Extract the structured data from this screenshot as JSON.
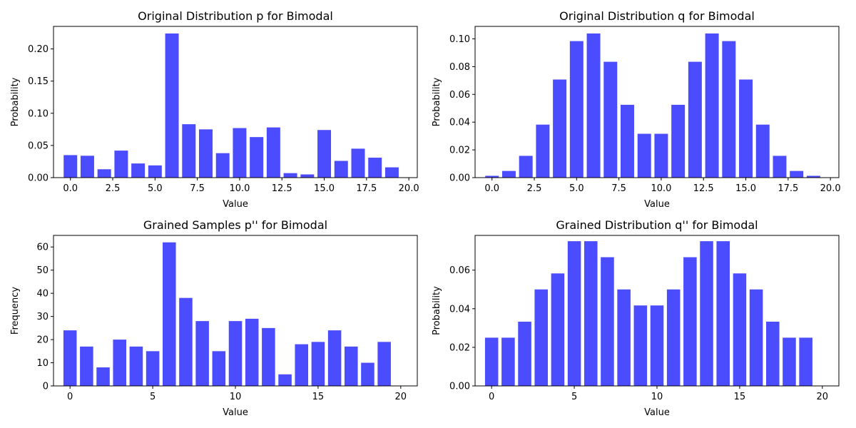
{
  "chart_data": [
    {
      "type": "bar",
      "title": "Original Distribution p for Bimodal",
      "xlabel": "Value",
      "ylabel": "Probability",
      "x": [
        0,
        1,
        2,
        3,
        4,
        5,
        6,
        7,
        8,
        9,
        10,
        11,
        12,
        13,
        14,
        15,
        16,
        17,
        18,
        19
      ],
      "values": [
        0.035,
        0.034,
        0.013,
        0.042,
        0.022,
        0.019,
        0.224,
        0.083,
        0.075,
        0.038,
        0.077,
        0.063,
        0.078,
        0.007,
        0.005,
        0.074,
        0.026,
        0.045,
        0.031,
        0.016
      ],
      "xlim": [
        -1,
        20.5
      ],
      "ylim": [
        0,
        0.235
      ],
      "xticks": [
        0,
        2.5,
        5,
        7.5,
        10,
        12.5,
        15,
        17.5,
        20
      ],
      "xtick_labels": [
        "0.0",
        "2.5",
        "5.0",
        "7.5",
        "10.0",
        "12.5",
        "15.0",
        "17.5",
        "20.0"
      ],
      "yticks": [
        0,
        0.05,
        0.1,
        0.15,
        0.2
      ],
      "ytick_labels": [
        "0.00",
        "0.05",
        "0.10",
        "0.15",
        "0.20"
      ],
      "bar_color": "#0000ff",
      "grid": false
    },
    {
      "type": "bar",
      "title": "Original Distribution q for Bimodal",
      "xlabel": "Value",
      "ylabel": "Probability",
      "x": [
        0,
        1,
        2,
        3,
        4,
        5,
        6,
        7,
        8,
        9,
        10,
        11,
        12,
        13,
        14,
        15,
        16,
        17,
        18,
        19
      ],
      "values": [
        0.0013,
        0.0048,
        0.0157,
        0.0382,
        0.0707,
        0.0984,
        0.1039,
        0.0835,
        0.0525,
        0.0316,
        0.0316,
        0.0525,
        0.0835,
        0.1039,
        0.0984,
        0.0707,
        0.0382,
        0.0157,
        0.0048,
        0.0013
      ],
      "xlim": [
        -1,
        20.5
      ],
      "ylim": [
        0,
        0.109
      ],
      "xticks": [
        0,
        2.5,
        5,
        7.5,
        10,
        12.5,
        15,
        17.5,
        20
      ],
      "xtick_labels": [
        "0.0",
        "2.5",
        "5.0",
        "7.5",
        "10.0",
        "12.5",
        "15.0",
        "17.5",
        "20.0"
      ],
      "yticks": [
        0,
        0.02,
        0.04,
        0.06,
        0.08,
        0.1
      ],
      "ytick_labels": [
        "0.00",
        "0.02",
        "0.04",
        "0.06",
        "0.08",
        "0.10"
      ],
      "bar_color": "#0000ff",
      "grid": false
    },
    {
      "type": "bar",
      "title": "Grained Samples p'' for Bimodal",
      "xlabel": "Value",
      "ylabel": "Frequency",
      "x": [
        0,
        1,
        2,
        3,
        4,
        5,
        6,
        7,
        8,
        9,
        10,
        11,
        12,
        13,
        14,
        15,
        16,
        17,
        18,
        19
      ],
      "values": [
        24,
        17,
        8,
        20,
        17,
        15,
        62,
        38,
        28,
        15,
        28,
        29,
        25,
        5,
        18,
        19,
        24,
        17,
        10,
        19
      ],
      "xlim": [
        -1,
        21
      ],
      "ylim": [
        0,
        65
      ],
      "xticks": [
        0,
        5,
        10,
        15,
        20
      ],
      "xtick_labels": [
        "0",
        "5",
        "10",
        "15",
        "20"
      ],
      "yticks": [
        0,
        10,
        20,
        30,
        40,
        50,
        60
      ],
      "ytick_labels": [
        "0",
        "10",
        "20",
        "30",
        "40",
        "50",
        "60"
      ],
      "bar_color": "#0000ff",
      "grid": false
    },
    {
      "type": "bar",
      "title": "Grained Distribution q'' for Bimodal",
      "xlabel": "Value",
      "ylabel": "Probability",
      "x": [
        0,
        1,
        2,
        3,
        4,
        5,
        6,
        7,
        8,
        9,
        10,
        11,
        12,
        13,
        14,
        15,
        16,
        17,
        18,
        19
      ],
      "values": [
        0.025,
        0.025,
        0.0333,
        0.05,
        0.0583,
        0.075,
        0.075,
        0.0667,
        0.05,
        0.0417,
        0.0417,
        0.05,
        0.0667,
        0.075,
        0.075,
        0.0583,
        0.05,
        0.0333,
        0.025,
        0.025
      ],
      "xlim": [
        -1,
        21
      ],
      "ylim": [
        0,
        0.078
      ],
      "xticks": [
        0,
        5,
        10,
        15,
        20
      ],
      "xtick_labels": [
        "0",
        "5",
        "10",
        "15",
        "20"
      ],
      "yticks": [
        0,
        0.02,
        0.04,
        0.06
      ],
      "ytick_labels": [
        "0.00",
        "0.02",
        "0.04",
        "0.06"
      ],
      "bar_color": "#0000ff",
      "grid": false
    }
  ]
}
